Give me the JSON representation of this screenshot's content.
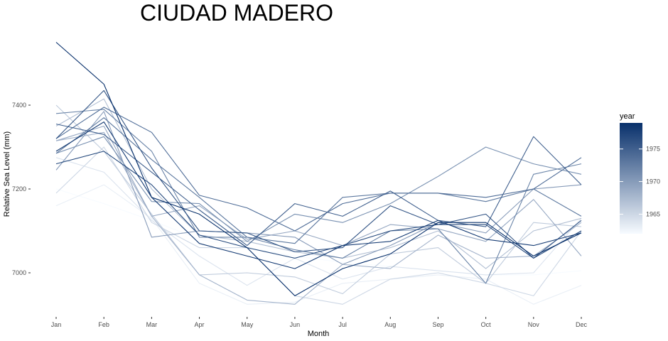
{
  "chart_data": {
    "type": "line",
    "title": "CIUDAD MADERO",
    "xlabel": "Month",
    "ylabel": "Relative Sea Level (mm)",
    "categories": [
      "Jan",
      "Feb",
      "Mar",
      "Apr",
      "May",
      "Jun",
      "Jul",
      "Aug",
      "Sep",
      "Oct",
      "Nov",
      "Dec"
    ],
    "y_ticks": [
      7000,
      7200,
      7400
    ],
    "ylim": [
      6890,
      7550
    ],
    "grid": false,
    "legend": {
      "title": "year",
      "placement": "right",
      "type": "continuous",
      "ticks": [
        1965,
        1970,
        1975
      ],
      "range": [
        1962,
        1979
      ],
      "color_low": "#f7fbff",
      "color_high": "#08306b"
    },
    "series": [
      {
        "year": 1962,
        "values": [
          7200,
          7165,
          7125,
          7080,
          7060,
          7040,
          7025,
          7015,
          7005,
          6995,
          6995,
          7005
        ]
      },
      {
        "year": 1963,
        "values": [
          7160,
          7210,
          7130,
          6975,
          6925,
          6930,
          6975,
          6985,
          6995,
          6985,
          6925,
          6970
        ]
      },
      {
        "year": 1964,
        "values": [
          7275,
          7240,
          7125,
          7040,
          6970,
          7035,
          6985,
          7015,
          7005,
          6995,
          7000,
          7130
        ]
      },
      {
        "year": 1965,
        "values": [
          7190,
          7300,
          7120,
          7060,
          7060,
          6945,
          6925,
          6985,
          7000,
          6975,
          6945,
          7100
        ]
      },
      {
        "year": 1966,
        "values": [
          7400,
          7290,
          7140,
          6995,
          7000,
          6990,
          6950,
          7045,
          7060,
          6975,
          7120,
          7110
        ]
      },
      {
        "year": 1967,
        "values": [
          7350,
          7415,
          7200,
          7090,
          7075,
          7050,
          7035,
          7060,
          7100,
          7010,
          7100,
          7130
        ]
      },
      {
        "year": 1968,
        "values": [
          7315,
          7335,
          7135,
          6995,
          6935,
          6925,
          7020,
          7010,
          7090,
          7035,
          7040,
          7120
        ]
      },
      {
        "year": 1969,
        "values": [
          7315,
          7350,
          7135,
          7160,
          7080,
          7100,
          7065,
          7115,
          7105,
          7075,
          7175,
          7040
        ]
      },
      {
        "year": 1970,
        "values": [
          7245,
          7385,
          7085,
          7100,
          7095,
          7085,
          7020,
          7065,
          7120,
          7095,
          7200,
          7210
        ]
      },
      {
        "year": 1971,
        "values": [
          7285,
          7325,
          7170,
          7165,
          7075,
          7140,
          7120,
          7165,
          7230,
          7300,
          7260,
          7235
        ]
      },
      {
        "year": 1972,
        "values": [
          7380,
          7390,
          7290,
          7085,
          7085,
          7055,
          7035,
          7100,
          7105,
          6975,
          7235,
          7260
        ]
      },
      {
        "year": 1973,
        "values": [
          7285,
          7370,
          7270,
          7180,
          7085,
          7070,
          7180,
          7190,
          7190,
          7170,
          7200,
          7135
        ]
      },
      {
        "year": 1974,
        "values": [
          7320,
          7395,
          7335,
          7185,
          7155,
          7100,
          7165,
          7190,
          7190,
          7180,
          7200,
          7275
        ]
      },
      {
        "year": 1975,
        "values": [
          7355,
          7330,
          7240,
          7150,
          7065,
          7165,
          7135,
          7195,
          7125,
          7110,
          7325,
          7210
        ]
      },
      {
        "year": 1976,
        "values": [
          7320,
          7435,
          7250,
          7100,
          7095,
          7050,
          7060,
          7160,
          7115,
          7140,
          7035,
          7125
        ]
      },
      {
        "year": 1977,
        "values": [
          7260,
          7290,
          7210,
          7090,
          7060,
          7035,
          7065,
          7100,
          7115,
          7115,
          7035,
          7100
        ]
      },
      {
        "year": 1978,
        "values": [
          7290,
          7360,
          7180,
          7070,
          7040,
          7010,
          7065,
          7075,
          7125,
          7080,
          7065,
          7095
        ]
      },
      {
        "year": 1979,
        "values": [
          7550,
          7450,
          7180,
          7140,
          7060,
          6945,
          7010,
          7045,
          7120,
          7120,
          7040,
          7095
        ]
      }
    ]
  }
}
